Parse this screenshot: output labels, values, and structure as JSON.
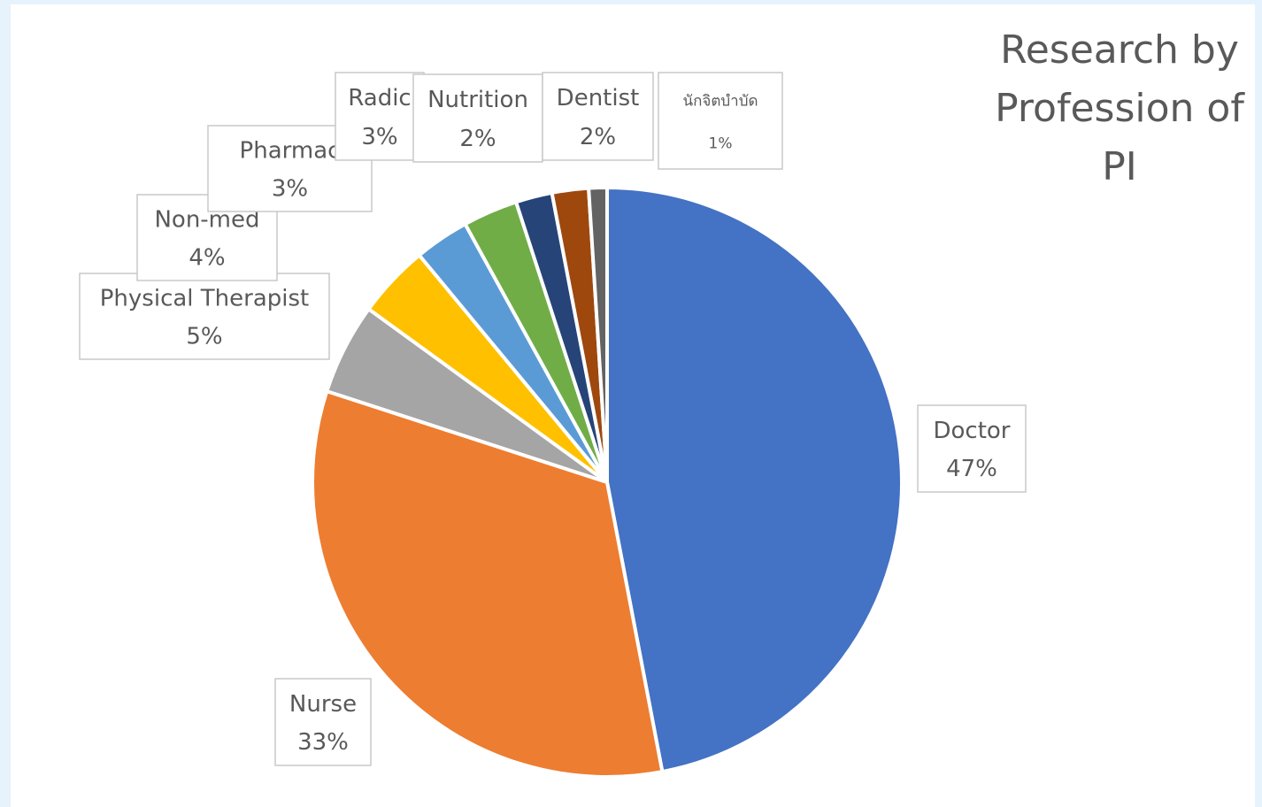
{
  "chart_data": {
    "type": "pie",
    "title": "Research by Profession of PI",
    "categories": [
      "Doctor",
      "Nurse",
      "Physical Therapist",
      "Non-med",
      "Pharmac",
      "Radic",
      "Nutrition",
      "Dentist",
      "นักจิตบำบัด"
    ],
    "values": [
      47,
      33,
      5,
      4,
      3,
      3,
      2,
      2,
      1
    ],
    "value_labels": [
      "47%",
      "33%",
      "5%",
      "4%",
      "3%",
      "3%",
      "2%",
      "2%",
      "1%"
    ],
    "colors": [
      "#4472c4",
      "#ed7d31",
      "#a5a5a5",
      "#ffc000",
      "#5b9bd5",
      "#70ad47",
      "#264478",
      "#9e480e",
      "#636363"
    ]
  }
}
